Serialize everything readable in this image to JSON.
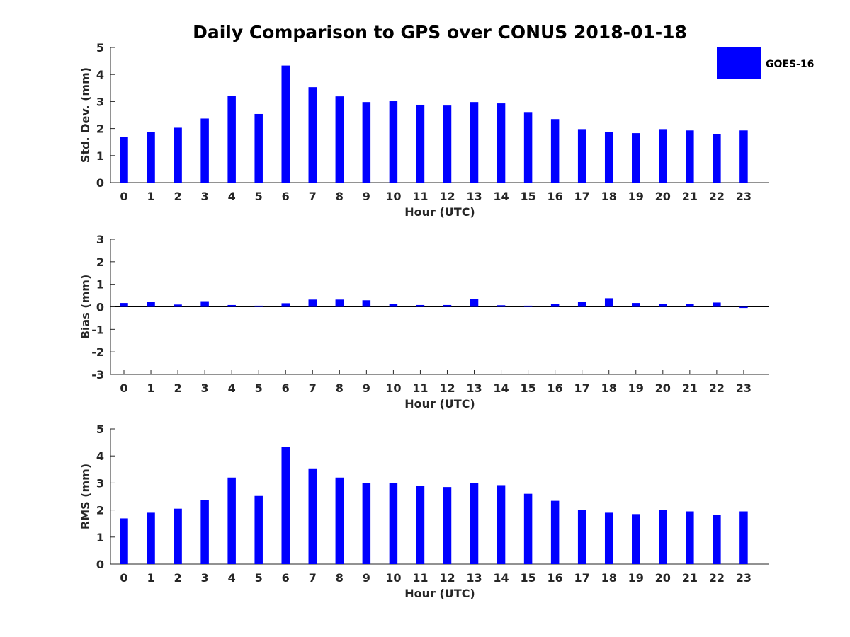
{
  "title": "Daily Comparison to GPS over CONUS 2018-01-18",
  "legend": {
    "label": "GOES-16",
    "color": "#0000ff",
    "placement": "top-right"
  },
  "colors": {
    "bar": "#0000ff",
    "axis": "#262626"
  },
  "chart_data": [
    {
      "type": "bar",
      "title": "Daily Comparison to GPS over CONUS 2018-01-18",
      "xlabel": "Hour (UTC)",
      "ylabel": "Std. Dev. (mm)",
      "categories": [
        "0",
        "1",
        "2",
        "3",
        "4",
        "5",
        "6",
        "7",
        "8",
        "9",
        "10",
        "11",
        "12",
        "13",
        "14",
        "15",
        "16",
        "17",
        "18",
        "19",
        "20",
        "21",
        "22",
        "23"
      ],
      "series": [
        {
          "name": "GOES-16",
          "values": [
            1.7,
            1.88,
            2.03,
            2.37,
            3.22,
            2.54,
            4.33,
            3.53,
            3.19,
            2.98,
            3.01,
            2.88,
            2.85,
            2.98,
            2.93,
            2.61,
            2.35,
            1.98,
            1.86,
            1.83,
            1.98,
            1.93,
            1.8,
            1.93
          ]
        }
      ],
      "ylim": [
        0,
        5
      ],
      "yticks": [
        "0",
        "1",
        "2",
        "3",
        "4",
        "5"
      ]
    },
    {
      "type": "bar",
      "xlabel": "Hour (UTC)",
      "ylabel": "Bias (mm)",
      "categories": [
        "0",
        "1",
        "2",
        "3",
        "4",
        "5",
        "6",
        "7",
        "8",
        "9",
        "10",
        "11",
        "12",
        "13",
        "14",
        "15",
        "16",
        "17",
        "18",
        "19",
        "20",
        "21",
        "22",
        "23"
      ],
      "series": [
        {
          "name": "GOES-16",
          "values": [
            0.17,
            0.22,
            0.1,
            0.25,
            0.08,
            0.05,
            0.16,
            0.32,
            0.32,
            0.29,
            0.13,
            0.08,
            0.08,
            0.35,
            0.07,
            0.05,
            0.13,
            0.22,
            0.38,
            0.17,
            0.13,
            0.13,
            0.19,
            -0.05
          ]
        }
      ],
      "ylim": [
        -3,
        3
      ],
      "yticks": [
        "-3",
        "-2",
        "-1",
        "0",
        "1",
        "2",
        "3"
      ]
    },
    {
      "type": "bar",
      "xlabel": "Hour (UTC)",
      "ylabel": "RMS (mm)",
      "categories": [
        "0",
        "1",
        "2",
        "3",
        "4",
        "5",
        "6",
        "7",
        "8",
        "9",
        "10",
        "11",
        "12",
        "13",
        "14",
        "15",
        "16",
        "17",
        "18",
        "19",
        "20",
        "21",
        "22",
        "23"
      ],
      "series": [
        {
          "name": "GOES-16",
          "values": [
            1.69,
            1.9,
            2.05,
            2.38,
            3.2,
            2.52,
            4.32,
            3.54,
            3.2,
            2.99,
            2.99,
            2.88,
            2.85,
            2.99,
            2.92,
            2.6,
            2.34,
            2.0,
            1.9,
            1.85,
            2.0,
            1.95,
            1.82,
            1.95
          ]
        }
      ],
      "ylim": [
        0,
        5
      ],
      "yticks": [
        "0",
        "1",
        "2",
        "3",
        "4",
        "5"
      ]
    }
  ]
}
